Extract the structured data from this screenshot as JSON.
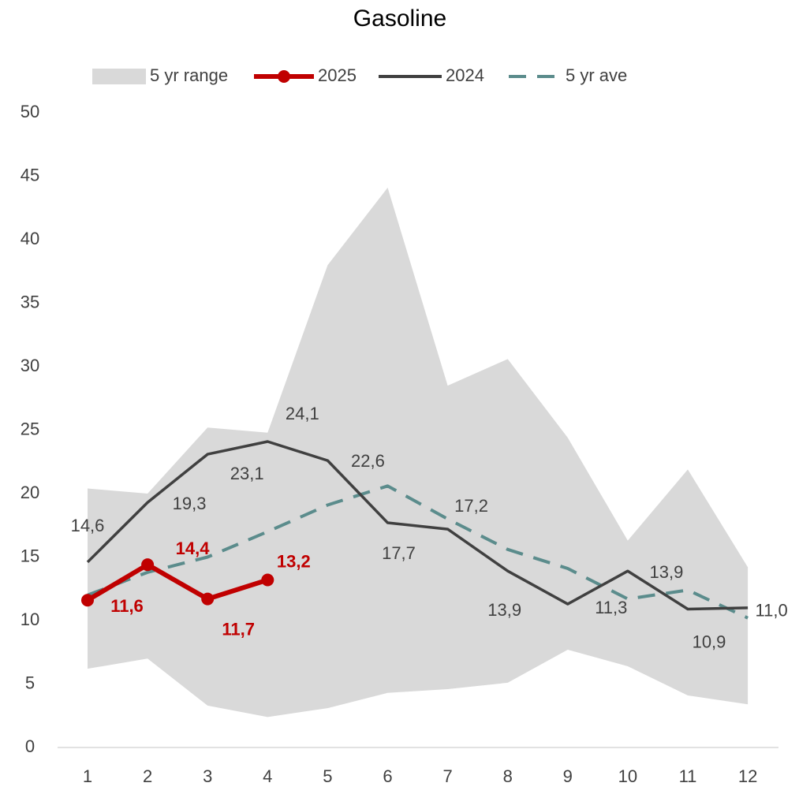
{
  "chart_data": {
    "type": "line",
    "title": "Gasoline",
    "categories": [
      "1",
      "2",
      "3",
      "4",
      "5",
      "6",
      "7",
      "8",
      "9",
      "10",
      "11",
      "12"
    ],
    "ylim": [
      0,
      50
    ],
    "yticks": [
      0,
      5,
      10,
      15,
      20,
      25,
      30,
      35,
      40,
      45,
      50
    ],
    "legend": "top",
    "range": {
      "name": "5 yr range",
      "color": "#d9d9d9",
      "high": [
        20.4,
        20.0,
        25.2,
        24.8,
        38.0,
        44.1,
        28.5,
        30.6,
        24.4,
        16.3,
        21.9,
        14.2
      ],
      "low": [
        6.2,
        7.0,
        3.3,
        2.4,
        3.1,
        4.3,
        4.6,
        5.1,
        7.7,
        6.4,
        4.1,
        3.4
      ]
    },
    "series": [
      {
        "name": "2025",
        "color": "#c00000",
        "marker": true,
        "values": [
          11.6,
          14.4,
          11.7,
          13.2,
          null,
          null,
          null,
          null,
          null,
          null,
          null,
          null
        ],
        "value_labels": [
          "11,6",
          "14,4",
          "11,7",
          "13,2",
          null,
          null,
          null,
          null,
          null,
          null,
          null,
          null
        ]
      },
      {
        "name": "2024",
        "color": "#404040",
        "values": [
          14.6,
          19.3,
          23.1,
          24.1,
          22.6,
          17.7,
          17.2,
          13.9,
          11.3,
          13.9,
          10.9,
          11.0
        ],
        "value_labels": [
          "14,6",
          "19,3",
          "23,1",
          "24,1",
          "22,6",
          "17,7",
          "17,2",
          "13,9",
          "11,3",
          "13,9",
          "10,9",
          "11,0"
        ]
      },
      {
        "name": "5 yr ave",
        "color": "#5b8c8c",
        "dashed": true,
        "values": [
          12.0,
          13.8,
          15.0,
          17.0,
          19.1,
          20.6,
          18.0,
          15.6,
          14.1,
          11.7,
          12.4,
          10.2
        ]
      }
    ]
  }
}
